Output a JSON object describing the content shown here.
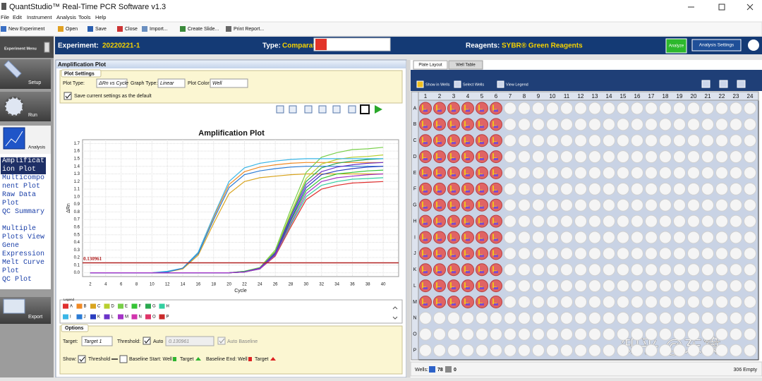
{
  "window": {
    "title": "QuantStudio™ Real-Time PCR Software v1.3"
  },
  "menu": [
    "File",
    "Edit",
    "Instrument",
    "Analysis",
    "Tools",
    "Help"
  ],
  "toolbar": [
    "New Experiment",
    "Open",
    "Save",
    "Close",
    "Import...",
    "Create Slide...",
    "Print Report..."
  ],
  "sidebar": {
    "header": "Experiment Menu",
    "steps": [
      "Setup",
      "Run",
      "Analysis"
    ],
    "analysis_items": [
      "Amplification Plot",
      "Multicomponent Plot",
      "Raw Data Plot",
      "QC Summary",
      "Multiple Plots View",
      "Gene Expression",
      "Melt Curve Plot",
      "QC Plot"
    ],
    "export": "Export"
  },
  "header": {
    "experiment_label": "Experiment:",
    "experiment": "20220221-1",
    "type_label": "Type:",
    "type": "Comparat",
    "reagents_label": "Reagents:",
    "reagents": "SYBR® Green Reagents",
    "analyze": "Analyze",
    "settings": "Analysis Settings"
  },
  "panel": {
    "title": "Amplification Plot",
    "plot_settings": "Plot Settings",
    "plot_type_label": "Plot Type:",
    "plot_type": "ΔRn vs Cycle",
    "graph_type_label": "Graph Type:",
    "graph_type": "Linear",
    "plot_color_label": "Plot Color:",
    "plot_color": "Well",
    "save_default": "Save current settings as the default",
    "legend_label": "Legend",
    "options": {
      "title": "Options",
      "target_label": "Target:",
      "target": "Target 1",
      "threshold_label": "Threshold:",
      "auto": "Auto",
      "auto_baseline": "Auto Baseline",
      "show_label": "Show:",
      "show_threshold": "Threshold",
      "baseline_start": "Baseline Start: Well",
      "start_target": "Target",
      "baseline_end": "Baseline End: Well",
      "end_target": "Target"
    }
  },
  "chart_data": {
    "type": "line",
    "title": "Amplification Plot",
    "x_label": "Cycle",
    "y_label": "ΔRn",
    "x": [
      2,
      4,
      6,
      8,
      10,
      12,
      14,
      16,
      18,
      20,
      22,
      24,
      26,
      28,
      30,
      32,
      34,
      36,
      38,
      40
    ],
    "xlim": [
      1,
      42
    ],
    "xticks": [
      2,
      4,
      6,
      8,
      10,
      12,
      14,
      16,
      18,
      20,
      22,
      24,
      26,
      28,
      30,
      32,
      34,
      36,
      38,
      40
    ],
    "ylim": [
      -0.05,
      1.75
    ],
    "yticks": [
      {
        "value": 0,
        "label": "0.0"
      },
      0.1,
      0.2,
      0.3,
      0.4,
      0.5,
      0.6,
      0.7,
      0.8,
      0.9,
      {
        "value": 1,
        "label": "1.0"
      },
      1.1,
      1.2,
      1.3,
      1.4,
      1.5,
      1.6,
      1.7
    ],
    "grid": true,
    "threshold": {
      "value": 0.130961,
      "color": "#b22222"
    },
    "series": [
      {
        "name": "A",
        "color": "#e0302f",
        "values": [
          0,
          0,
          0,
          0,
          0,
          0,
          0,
          0,
          0,
          0,
          0.01,
          0.05,
          0.22,
          0.6,
          0.96,
          1.1,
          1.15,
          1.18,
          1.19,
          1.2
        ]
      },
      {
        "name": "B",
        "color": "#f08a24",
        "values": [
          0,
          0,
          0,
          0,
          0,
          0.01,
          0.06,
          0.26,
          0.73,
          1.16,
          1.33,
          1.39,
          1.42,
          1.44,
          1.45,
          1.45,
          1.45,
          1.45,
          1.45,
          1.45
        ]
      },
      {
        "name": "C",
        "color": "#d9a520",
        "values": [
          0,
          0,
          0,
          0,
          0,
          0.01,
          0.05,
          0.23,
          0.65,
          1.04,
          1.2,
          1.25,
          1.27,
          1.29,
          1.3,
          1.3,
          1.3,
          1.3,
          1.3,
          1.3
        ]
      },
      {
        "name": "D",
        "color": "#b8cf2e",
        "values": [
          0,
          0,
          0,
          0,
          0,
          0,
          0,
          0,
          0,
          0,
          0.02,
          0.06,
          0.28,
          0.78,
          1.24,
          1.43,
          1.49,
          1.52,
          1.53,
          1.55
        ]
      },
      {
        "name": "E",
        "color": "#78cf4a",
        "values": [
          0,
          0,
          0,
          0,
          0,
          0,
          0,
          0,
          0,
          0,
          0.02,
          0.07,
          0.3,
          0.83,
          1.32,
          1.52,
          1.58,
          1.62,
          1.63,
          1.65
        ]
      },
      {
        "name": "F",
        "color": "#35c435",
        "values": [
          0,
          0,
          0,
          0,
          0,
          0,
          0,
          0,
          0,
          0,
          0.01,
          0.05,
          0.24,
          0.68,
          1.08,
          1.24,
          1.3,
          1.32,
          1.34,
          1.35
        ]
      },
      {
        "name": "G",
        "color": "#2aa84f",
        "values": [
          0,
          0,
          0,
          0,
          0,
          0,
          0,
          0,
          0,
          0,
          0.02,
          0.06,
          0.27,
          0.75,
          1.2,
          1.38,
          1.44,
          1.47,
          1.49,
          1.5
        ]
      },
      {
        "name": "H",
        "color": "#33cfa0",
        "values": [
          0,
          0,
          0,
          0,
          0,
          0,
          0,
          0,
          0,
          0,
          0.01,
          0.05,
          0.23,
          0.63,
          1,
          1.15,
          1.2,
          1.23,
          1.24,
          1.25
        ]
      },
      {
        "name": "I",
        "color": "#3bb6e6",
        "values": [
          0,
          0,
          0,
          0,
          0,
          0.02,
          0.06,
          0.27,
          0.75,
          1.2,
          1.38,
          1.44,
          1.47,
          1.49,
          1.5,
          1.5,
          1.5,
          1.5,
          1.5,
          1.5
        ]
      },
      {
        "name": "J",
        "color": "#2b7bd4",
        "values": [
          0,
          0,
          0,
          0,
          0,
          0.01,
          0.06,
          0.25,
          0.7,
          1.12,
          1.29,
          1.34,
          1.37,
          1.39,
          1.4,
          1.4,
          1.4,
          1.4,
          1.4,
          1.4
        ]
      },
      {
        "name": "K",
        "color": "#2a3dbf",
        "values": [
          0,
          0,
          0,
          0,
          0,
          0,
          0,
          0,
          0,
          0,
          0.01,
          0.06,
          0.25,
          0.7,
          1.12,
          1.29,
          1.34,
          1.37,
          1.39,
          1.4
        ]
      },
      {
        "name": "L",
        "color": "#6a33c8",
        "values": [
          0,
          0,
          0,
          0,
          0,
          0,
          0,
          0,
          0,
          0,
          0.01,
          0.06,
          0.26,
          0.73,
          1.16,
          1.33,
          1.39,
          1.42,
          1.44,
          1.45
        ]
      },
      {
        "name": "M",
        "color": "#a435c6",
        "values": [
          0,
          0,
          0,
          0,
          0,
          0,
          0,
          0,
          0,
          0,
          0.01,
          0.05,
          0.23,
          0.65,
          1.04,
          1.2,
          1.25,
          1.27,
          1.29,
          1.3
        ]
      },
      {
        "name": "N",
        "color": "#d134ad",
        "values": [
          null,
          null,
          null,
          null,
          null,
          null,
          null,
          null,
          null,
          null,
          null,
          null,
          null,
          null,
          null,
          null,
          null,
          null,
          null,
          null
        ]
      },
      {
        "name": "O",
        "color": "#df3468",
        "values": [
          null,
          null,
          null,
          null,
          null,
          null,
          null,
          null,
          null,
          null,
          null,
          null,
          null,
          null,
          null,
          null,
          null,
          null,
          null,
          null
        ]
      },
      {
        "name": "P",
        "color": "#c92a2a",
        "values": [
          null,
          null,
          null,
          null,
          null,
          null,
          null,
          null,
          null,
          null,
          null,
          null,
          null,
          null,
          null,
          null,
          null,
          null,
          null,
          null
        ]
      }
    ]
  },
  "plate": {
    "tabs": [
      "Plate Layout",
      "Well Table"
    ],
    "tools": [
      "Show in Wells",
      "Select Wells",
      "View Legend"
    ],
    "columns": [
      "1",
      "2",
      "3",
      "4",
      "5",
      "6",
      "7",
      "8",
      "9",
      "10",
      "11",
      "12",
      "13",
      "14",
      "15",
      "16",
      "17",
      "18",
      "19",
      "20",
      "21",
      "22",
      "23",
      "24"
    ],
    "rows": [
      "A",
      "B",
      "C",
      "D",
      "E",
      "F",
      "G",
      "H",
      "I",
      "J",
      "K",
      "L",
      "M",
      "N",
      "O",
      "P"
    ],
    "status": {
      "label": "Wells:",
      "used": 78,
      "omitted": 0,
      "empty": "306 Empty"
    }
  },
  "watermark": "知乎 @东篱"
}
